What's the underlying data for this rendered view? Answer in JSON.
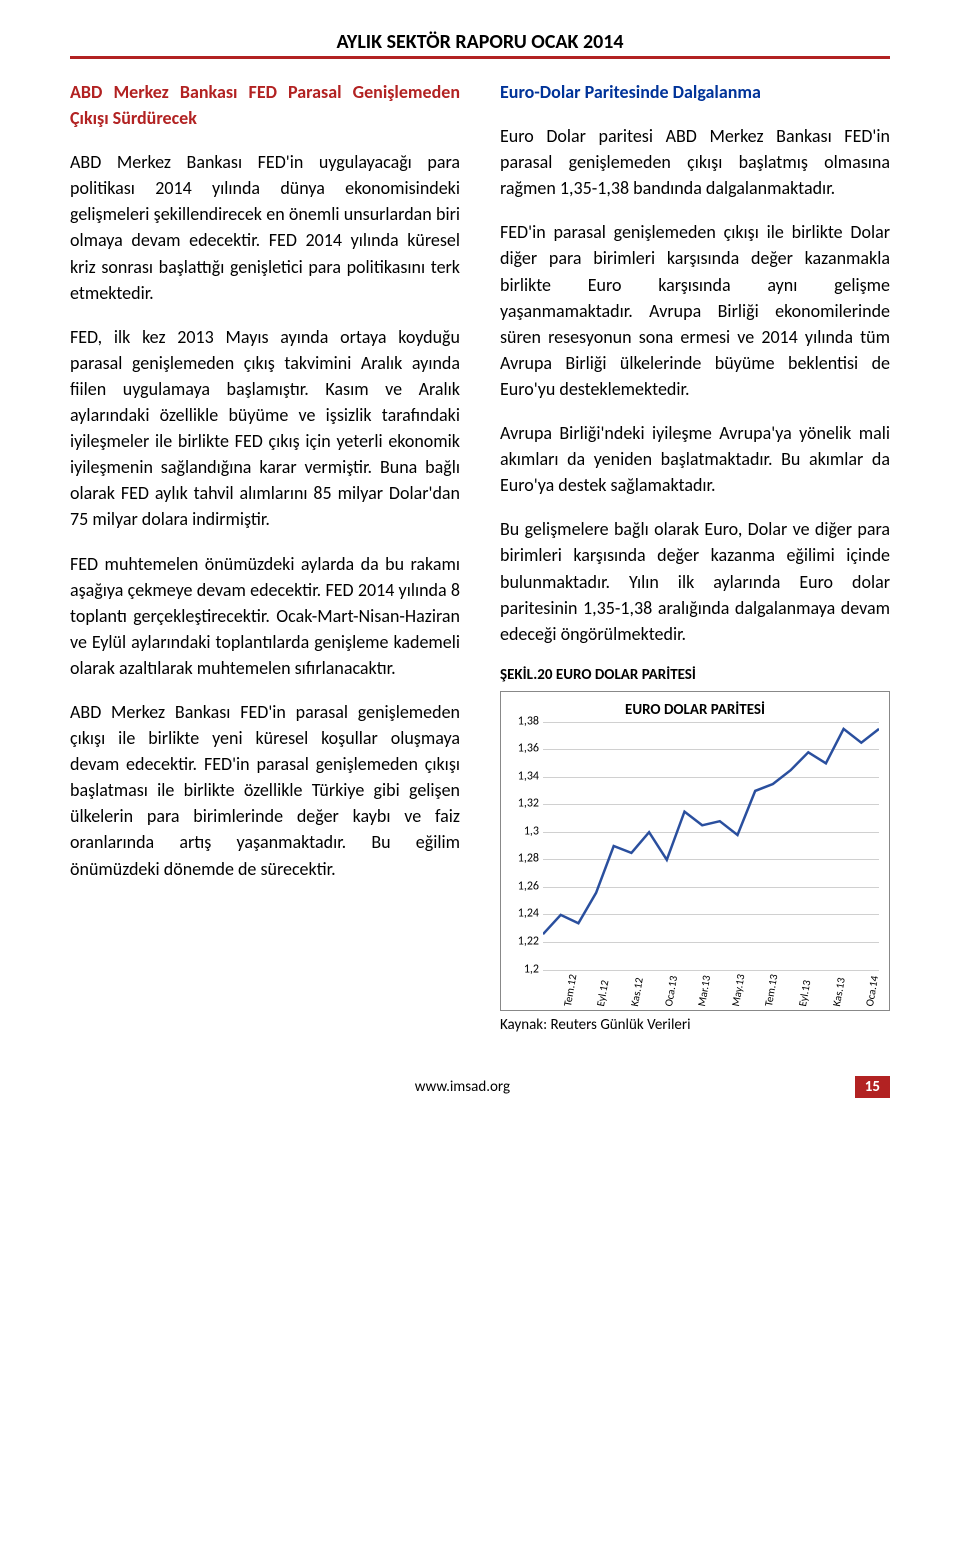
{
  "header": {
    "title": "AYLIK SEKTÖR RAPORU OCAK 2014"
  },
  "left": {
    "h1": "ABD Merkez Bankası FED Parasal Genişlemeden Çıkışı Sürdürecek",
    "p1": "ABD Merkez Bankası FED'in uygulayacağı para politikası 2014 yılında dünya ekonomisindeki gelişmeleri şekillendirecek en önemli unsurlardan biri olmaya devam edecektir. FED 2014 yılında küresel kriz sonrası başlattığı genişletici para politikasını terk etmektedir.",
    "p2": "FED, ilk kez 2013 Mayıs ayında ortaya koyduğu parasal genişlemeden çıkış takvimini Aralık ayında fiilen uygulamaya başlamıştır. Kasım ve Aralık aylarındaki özellikle büyüme ve işsizlik tarafındaki iyileşmeler ile birlikte FED çıkış için yeterli ekonomik iyileşmenin sağlandığına karar vermiştir. Buna bağlı olarak FED aylık tahvil alımlarını 85 milyar Dolar'dan 75 milyar dolara indirmiştir.",
    "p3": "FED muhtemelen önümüzdeki aylarda da bu rakamı aşağıya çekmeye devam edecektir. FED 2014 yılında 8 toplantı gerçekleştirecektir. Ocak-Mart-Nisan-Haziran ve Eylül aylarındaki toplantılarda genişleme kademeli olarak azaltılarak muhtemelen sıfırlanacaktır.",
    "p4": "ABD Merkez Bankası FED'in parasal genişlemeden çıkışı ile birlikte yeni küresel koşullar oluşmaya devam edecektir. FED'in parasal genişlemeden çıkışı başlatması ile birlikte özellikle Türkiye gibi gelişen ülkelerin para birimlerinde değer kaybı ve faiz oranlarında artış yaşanmaktadır. Bu eğilim önümüzdeki dönemde de sürecektir."
  },
  "right": {
    "h1": "Euro-Dolar Paritesinde Dalgalanma",
    "p1": "Euro Dolar paritesi ABD Merkez Bankası FED'in parasal genişlemeden çıkışı başlatmış olmasına rağmen 1,35-1,38 bandında dalgalanmaktadır.",
    "p2": "FED'in parasal genişlemeden çıkışı ile birlikte Dolar diğer para birimleri karşısında değer kazanmakla birlikte Euro karşısında aynı gelişme yaşanmamaktadır. Avrupa Birliği ekonomilerinde süren resesyonun sona ermesi ve 2014 yılında tüm Avrupa Birliği ülkelerinde büyüme beklentisi de Euro'yu desteklemektedir.",
    "p3": "Avrupa Birliği'ndeki iyileşme Avrupa'ya yönelik mali akımları da yeniden başlatmaktadır. Bu akımlar da Euro'ya destek sağlamaktadır.",
    "p4": "Bu gelişmelere bağlı olarak Euro, Dolar ve diğer para birimleri karşısında değer kazanma eğilimi içinde bulunmaktadır. Yılın ilk aylarında Euro dolar paritesinin 1,35-1,38 aralığında dalgalanmaya devam edeceği öngörülmektedir.",
    "chart_caption": "ŞEKİL.20 EURO DOLAR PARİTESİ",
    "chart_source": "Kaynak: Reuters Günlük Verileri"
  },
  "chart": {
    "title": "EURO DOLAR PARİTESİ",
    "type": "line",
    "ylim": [
      1.2,
      1.38
    ],
    "ytick_step": 0.02,
    "yticks": [
      "1,2",
      "1,22",
      "1,24",
      "1,26",
      "1,28",
      "1,3",
      "1,32",
      "1,34",
      "1,36",
      "1,38"
    ],
    "xlabels": [
      "Tem.12",
      "Eyl.12",
      "Kas.12",
      "Oca.13",
      "Mar.13",
      "May.13",
      "Tem.13",
      "Eyl.13",
      "Kas.13",
      "Oca.14"
    ],
    "values": [
      1.226,
      1.24,
      1.234,
      1.256,
      1.29,
      1.285,
      1.3,
      1.28,
      1.315,
      1.305,
      1.308,
      1.298,
      1.33,
      1.335,
      1.345,
      1.358,
      1.35,
      1.375,
      1.365,
      1.375
    ],
    "line_color": "#2a4f9e",
    "line_width": 2.5,
    "grid_color": "#d0d0d0",
    "background_color": "#ffffff",
    "font_size_axis": 12
  },
  "footer": {
    "url": "www.imsad.org",
    "page": "15"
  }
}
